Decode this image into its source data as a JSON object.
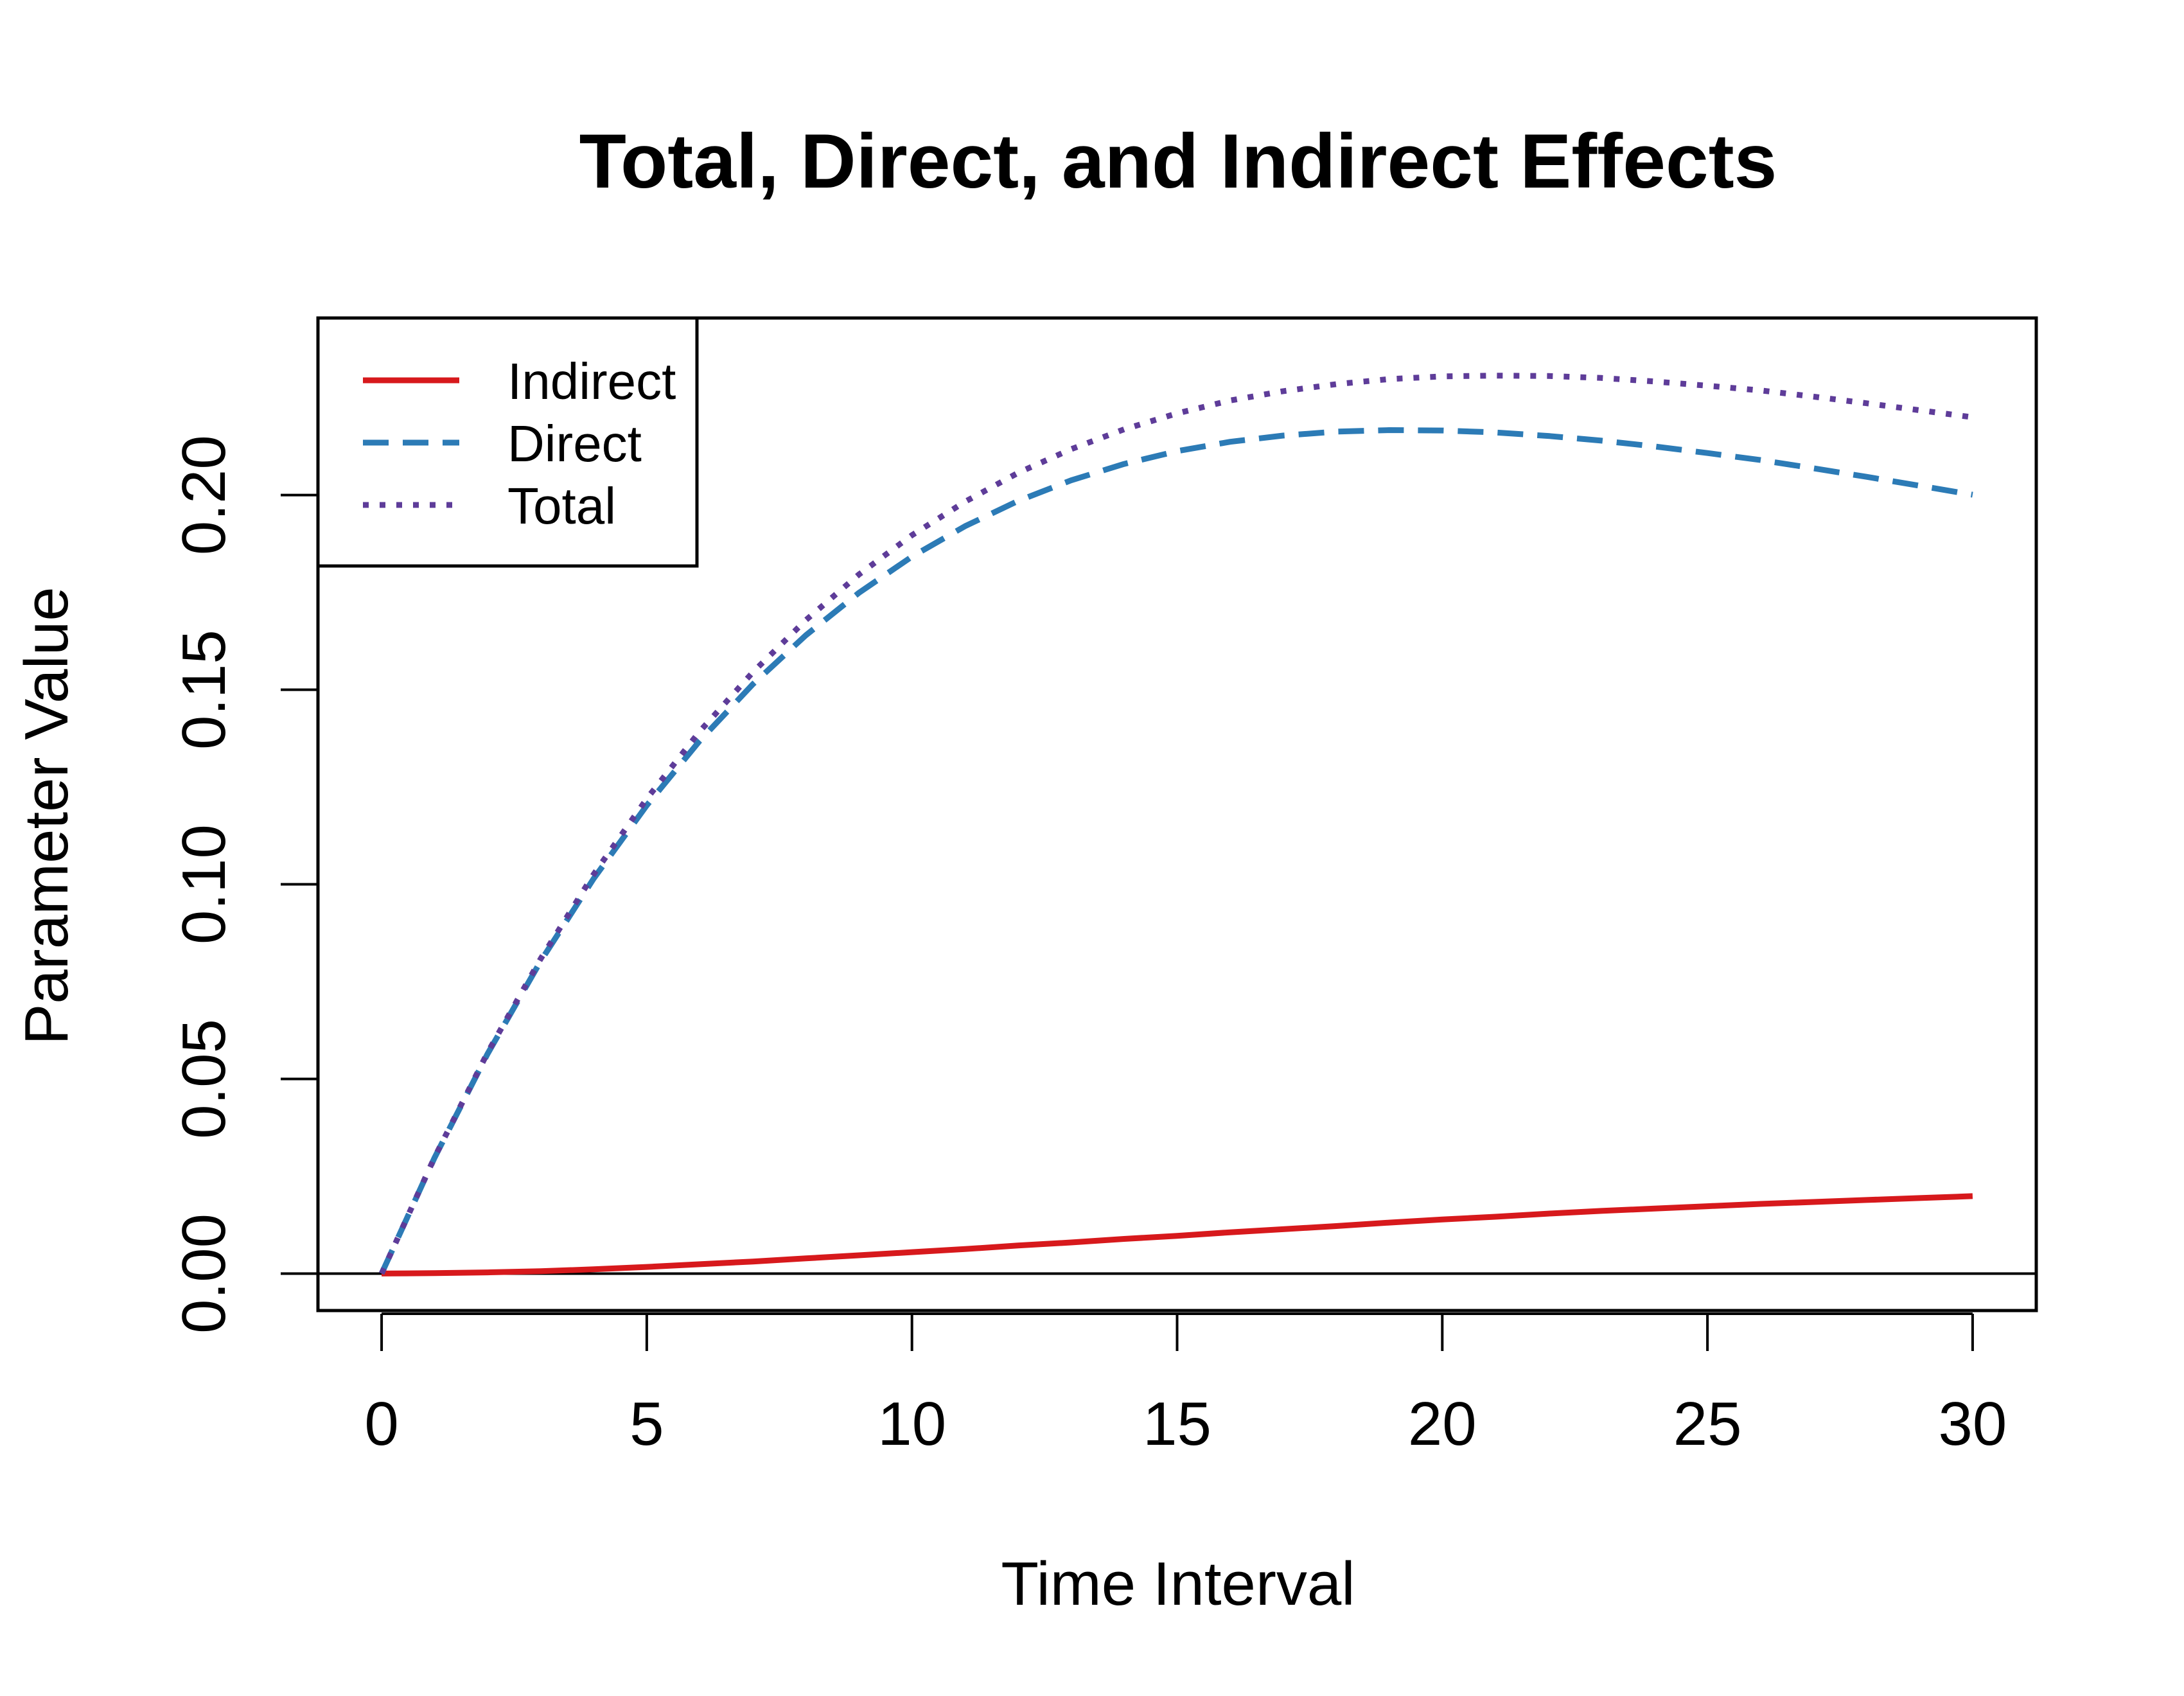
{
  "chart_data": {
    "type": "line",
    "title": "Total, Direct, and Indirect Effects",
    "xlabel": "Time Interval",
    "ylabel": "Parameter Value",
    "xlim": [
      -1.2,
      31.2
    ],
    "ylim": [
      -0.0095,
      0.2455
    ],
    "xticks": [
      0,
      5,
      10,
      15,
      20,
      25,
      30
    ],
    "xtick_labels": [
      "0",
      "5",
      "10",
      "15",
      "20",
      "25",
      "30"
    ],
    "yticks": [
      0,
      0.05,
      0.1,
      0.15,
      0.2
    ],
    "ytick_labels": [
      "0.00",
      "0.05",
      "0.10",
      "0.15",
      "0.20"
    ],
    "grid": false,
    "hline": 0,
    "legend_position": "top-left",
    "x": [
      0,
      1,
      2,
      3,
      4,
      5,
      6,
      7,
      8,
      9,
      10,
      11,
      12,
      13,
      14,
      15,
      16,
      17,
      18,
      19,
      20,
      21,
      22,
      23,
      24,
      25,
      26,
      27,
      28,
      29,
      30
    ],
    "series": [
      {
        "name": "Indirect",
        "color": "#d7191c",
        "dash": "solid",
        "values": [
          0.0,
          0.0001,
          0.0003,
          0.0006,
          0.0011,
          0.0017,
          0.0024,
          0.0031,
          0.0039,
          0.0047,
          0.0055,
          0.0063,
          0.0072,
          0.008,
          0.0089,
          0.0097,
          0.0106,
          0.0114,
          0.0122,
          0.0131,
          0.0139,
          0.0146,
          0.0154,
          0.0161,
          0.0167,
          0.0173,
          0.0179,
          0.0184,
          0.0189,
          0.0194,
          0.0199
        ]
      },
      {
        "name": "Direct",
        "color": "#2c7bb6",
        "dash": "dashed",
        "values": [
          0.0,
          0.0298,
          0.0565,
          0.0803,
          0.1015,
          0.1203,
          0.1369,
          0.1514,
          0.164,
          0.1749,
          0.1842,
          0.192,
          0.1985,
          0.2038,
          0.208,
          0.2113,
          0.2137,
          0.2153,
          0.2163,
          0.2167,
          0.2166,
          0.2161,
          0.2152,
          0.214,
          0.2125,
          0.2108,
          0.209,
          0.2069,
          0.2047,
          0.2024,
          0.2001
        ]
      },
      {
        "name": "Total",
        "color": "#5e3c99",
        "dash": "dotted",
        "values": [
          0.0,
          0.0299,
          0.0568,
          0.0809,
          0.1026,
          0.122,
          0.1393,
          0.1545,
          0.1679,
          0.1796,
          0.1897,
          0.1983,
          0.2057,
          0.2118,
          0.2169,
          0.221,
          0.2243,
          0.2267,
          0.2285,
          0.2298,
          0.2305,
          0.2307,
          0.2306,
          0.2301,
          0.2292,
          0.2281,
          0.2269,
          0.2253,
          0.2236,
          0.2218,
          0.22
        ]
      }
    ]
  }
}
